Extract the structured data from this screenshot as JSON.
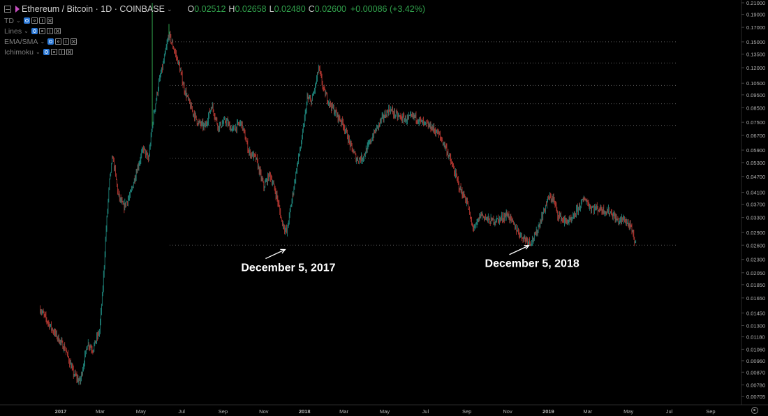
{
  "header": {
    "symbol_title": "Ethereum / Bitcoin · 1D · COINBASE",
    "open_label": "O",
    "open_value": "0.02512",
    "high_label": "H",
    "high_value": "0.02658",
    "low_label": "L",
    "low_value": "0.02480",
    "close_label": "C",
    "close_value": "0.02600",
    "change": "+0.00086 (+3.42%)"
  },
  "indicators": [
    {
      "label": "TD"
    },
    {
      "label": "Lines"
    },
    {
      "label": "EMA/SMA"
    },
    {
      "label": "Ichimoku"
    }
  ],
  "colors": {
    "up": "#26a69a",
    "down": "#e0443c",
    "background": "#000000",
    "grid_dots": "#5a5a5a",
    "axis_text": "#b4b4b4",
    "annotation": "#ffffff"
  },
  "chart_data": {
    "type": "candlestick",
    "title": "Ethereum / Bitcoin · 1D · COINBASE",
    "y_scale": "log",
    "ylim": [
      0.00685,
      0.21
    ],
    "y_ticks": [
      "0.21000",
      "0.19000",
      "0.17000",
      "0.15000",
      "0.13500",
      "0.12000",
      "0.10500",
      "0.09500",
      "0.08500",
      "0.07500",
      "0.06700",
      "0.05900",
      "0.05300",
      "0.04700",
      "0.04100",
      "0.03700",
      "0.03300",
      "0.02900",
      "0.02600",
      "0.02300",
      "0.02050",
      "0.01850",
      "0.01650",
      "0.01450",
      "0.01300",
      "0.01180",
      "0.01060",
      "0.00960",
      "0.00870",
      "0.00780",
      "0.00705"
    ],
    "x_ticks": [
      "2017",
      "Mar",
      "May",
      "Jul",
      "Sep",
      "Nov",
      "2018",
      "Mar",
      "May",
      "Jul",
      "Sep",
      "Nov",
      "2019",
      "Mar",
      "May",
      "Jul",
      "Sep"
    ],
    "x_range": [
      "2017-01-01",
      "2019-10-01"
    ],
    "price_path": [
      [
        "2016-12-01",
        0.014,
        0.015
      ],
      [
        "2016-12-20",
        0.0118,
        0.0125
      ],
      [
        "2017-01-08",
        0.0103,
        0.0106
      ],
      [
        "2017-01-20",
        0.009,
        0.0086
      ],
      [
        "2017-01-30",
        0.0078,
        0.008
      ],
      [
        "2017-02-10",
        0.0107,
        0.0112
      ],
      [
        "2017-02-18",
        0.0111,
        0.0106
      ],
      [
        "2017-02-28",
        0.0135,
        0.0124
      ],
      [
        "2017-03-05",
        0.0165,
        0.018
      ],
      [
        "2017-03-10",
        0.026,
        0.03
      ],
      [
        "2017-03-15",
        0.04,
        0.045
      ],
      [
        "2017-03-20",
        0.054,
        0.056
      ],
      [
        "2017-03-28",
        0.042,
        0.04
      ],
      [
        "2017-04-05",
        0.037,
        0.036
      ],
      [
        "2017-04-15",
        0.039,
        0.04
      ],
      [
        "2017-04-25",
        0.046,
        0.05
      ],
      [
        "2017-05-05",
        0.06,
        0.06
      ],
      [
        "2017-05-12",
        0.052,
        0.054
      ],
      [
        "2017-05-20",
        0.07,
        0.08
      ],
      [
        "2017-05-28",
        0.092,
        0.105
      ],
      [
        "2017-06-05",
        0.115,
        0.13
      ],
      [
        "2017-06-12",
        0.156,
        0.16
      ],
      [
        "2017-06-18",
        0.138,
        0.145
      ],
      [
        "2017-06-26",
        0.11,
        0.125
      ],
      [
        "2017-07-05",
        0.096,
        0.1
      ],
      [
        "2017-07-15",
        0.08,
        0.085
      ],
      [
        "2017-07-25",
        0.069,
        0.075
      ],
      [
        "2017-08-05",
        0.076,
        0.072
      ],
      [
        "2017-08-15",
        0.085,
        0.087
      ],
      [
        "2017-08-25",
        0.069,
        0.072
      ],
      [
        "2017-09-05",
        0.08,
        0.076
      ],
      [
        "2017-09-15",
        0.072,
        0.07
      ],
      [
        "2017-09-28",
        0.072,
        0.075
      ],
      [
        "2017-10-10",
        0.06,
        0.058
      ],
      [
        "2017-10-20",
        0.053,
        0.055
      ],
      [
        "2017-11-01",
        0.042,
        0.043
      ],
      [
        "2017-11-10",
        0.046,
        0.048
      ],
      [
        "2017-11-20",
        0.044,
        0.04
      ],
      [
        "2017-11-28",
        0.036,
        0.032
      ],
      [
        "2017-12-05",
        0.0255,
        0.029
      ],
      [
        "2017-12-12",
        0.035,
        0.037
      ],
      [
        "2017-12-20",
        0.045,
        0.05
      ],
      [
        "2017-12-28",
        0.06,
        0.065
      ],
      [
        "2018-01-05",
        0.085,
        0.092
      ],
      [
        "2018-01-12",
        0.087,
        0.09
      ],
      [
        "2018-01-18",
        0.1,
        0.105
      ],
      [
        "2018-01-22",
        0.115,
        0.12
      ],
      [
        "2018-01-30",
        0.102,
        0.098
      ],
      [
        "2018-02-08",
        0.092,
        0.088
      ],
      [
        "2018-02-18",
        0.082,
        0.08
      ],
      [
        "2018-02-28",
        0.075,
        0.074
      ],
      [
        "2018-03-10",
        0.065,
        0.062
      ],
      [
        "2018-03-20",
        0.056,
        0.0545
      ],
      [
        "2018-03-28",
        0.0545,
        0.055
      ],
      [
        "2018-04-05",
        0.058,
        0.06
      ],
      [
        "2018-04-15",
        0.066,
        0.068
      ],
      [
        "2018-04-25",
        0.074,
        0.076
      ],
      [
        "2018-05-08",
        0.083,
        0.084
      ],
      [
        "2018-05-20",
        0.082,
        0.079
      ],
      [
        "2018-06-01",
        0.075,
        0.077
      ],
      [
        "2018-06-15",
        0.078,
        0.079
      ],
      [
        "2018-06-28",
        0.077,
        0.074
      ],
      [
        "2018-07-10",
        0.074,
        0.072
      ],
      [
        "2018-07-20",
        0.07,
        0.068
      ],
      [
        "2018-08-01",
        0.061,
        0.06
      ],
      [
        "2018-08-12",
        0.052,
        0.05
      ],
      [
        "2018-08-22",
        0.044,
        0.042
      ],
      [
        "2018-09-01",
        0.04,
        0.038
      ],
      [
        "2018-09-08",
        0.033,
        0.031
      ],
      [
        "2018-09-13",
        0.0285,
        0.03
      ],
      [
        "2018-09-22",
        0.033,
        0.034
      ],
      [
        "2018-10-05",
        0.033,
        0.032
      ],
      [
        "2018-10-20",
        0.033,
        0.0325
      ],
      [
        "2018-11-01",
        0.0335,
        0.034
      ],
      [
        "2018-11-10",
        0.032,
        0.031
      ],
      [
        "2018-11-22",
        0.0285,
        0.028
      ],
      [
        "2018-12-05",
        0.0264,
        0.0268
      ],
      [
        "2018-12-12",
        0.0275,
        0.028
      ],
      [
        "2018-12-22",
        0.031,
        0.033
      ],
      [
        "2019-01-01",
        0.037,
        0.039
      ],
      [
        "2019-01-08",
        0.04,
        0.039
      ],
      [
        "2019-01-15",
        0.035,
        0.034
      ],
      [
        "2019-01-25",
        0.033,
        0.032
      ],
      [
        "2019-02-05",
        0.033,
        0.032
      ],
      [
        "2019-02-15",
        0.0345,
        0.036
      ],
      [
        "2019-02-25",
        0.038,
        0.039
      ],
      [
        "2019-03-05",
        0.037,
        0.036
      ],
      [
        "2019-03-20",
        0.036,
        0.0355
      ],
      [
        "2019-04-05",
        0.035,
        0.0345
      ],
      [
        "2019-04-15",
        0.033,
        0.032
      ],
      [
        "2019-04-25",
        0.033,
        0.0325
      ],
      [
        "2019-05-05",
        0.031,
        0.03
      ],
      [
        "2019-05-12",
        0.027,
        0.026
      ]
    ],
    "green_spikes": [
      [
        "2017-05-18",
        0.21
      ],
      [
        "2017-06-12",
        0.175
      ]
    ],
    "horizontal_levels": [
      0.15,
      0.125,
      0.103,
      0.088,
      0.073,
      0.055,
      0.026
    ],
    "annotations": [
      {
        "text": "December 5, 2017",
        "date": "2017-12-05",
        "price": 0.0255
      },
      {
        "text": "December 5, 2018",
        "date": "2018-12-05",
        "price": 0.0264
      }
    ]
  }
}
